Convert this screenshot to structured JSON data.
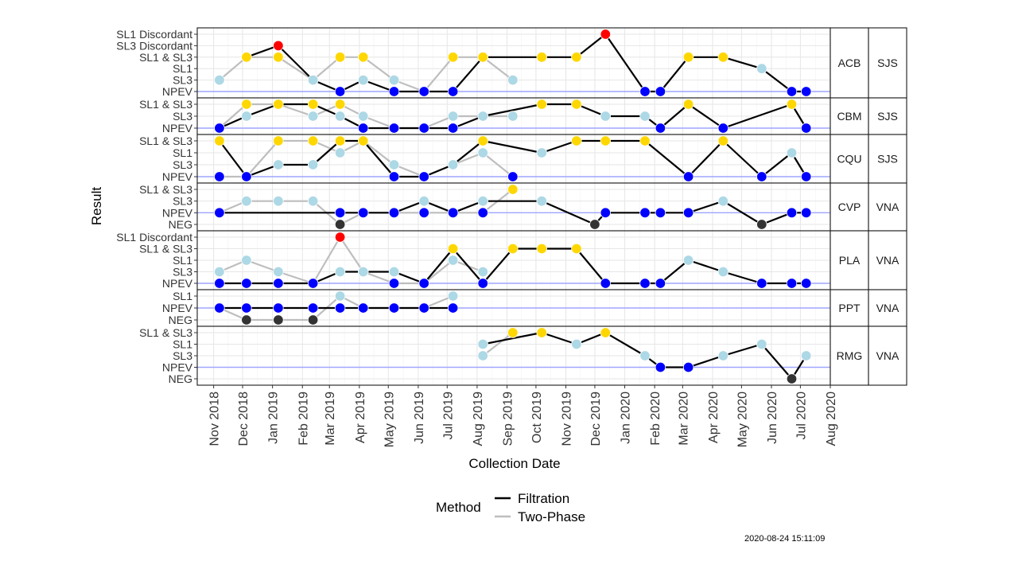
{
  "timestamp": "2020-08-24 15:11:09",
  "chart_data": {
    "type": "line",
    "xlabel": "Collection Date",
    "ylabel": "Result",
    "x_ticks": [
      "Nov 2018",
      "Dec 2018",
      "Jan 2019",
      "Feb 2019",
      "Mar 2019",
      "Apr 2019",
      "May 2019",
      "Jun 2019",
      "Jul 2019",
      "Aug 2019",
      "Sep 2019",
      "Oct 2019",
      "Nov 2019",
      "Dec 2019",
      "Jan 2020",
      "Feb 2020",
      "Mar 2020",
      "Apr 2020",
      "May 2020",
      "Jun 2020",
      "Jul 2020",
      "Aug 2020"
    ],
    "xlim": [
      "2018-10-15",
      "2020-08-01"
    ],
    "grid": true,
    "legend": {
      "title": "Method",
      "position": "bottom",
      "entries": [
        {
          "label": "Filtration",
          "color": "#000000"
        },
        {
          "label": "Two-Phase",
          "color": "#bebebe"
        }
      ]
    },
    "result_colors": {
      "SL1 Discordant": "#ff0000",
      "SL3 Discordant": "#ff0000",
      "SL1 & SL3": "#ffd700",
      "SL1": "#add8e6",
      "SL3": "#add8e6",
      "NPEV": "#0000ff",
      "NEG": "#333333"
    },
    "reference_level": "NPEV",
    "panels": [
      {
        "site": "ACB",
        "region": "SJS",
        "levels": [
          "NPEV",
          "SL3",
          "SL1",
          "SL1 & SL3",
          "SL3 Discordant",
          "SL1 Discordant"
        ],
        "series": [
          {
            "method": "Filtration",
            "points": [
              [
                "2018-12-05",
                "SL1 & SL3"
              ],
              [
                "2019-01-07",
                "SL3 Discordant"
              ],
              [
                "2019-02-12",
                "SL3"
              ],
              [
                "2019-03-12",
                "NPEV"
              ],
              [
                "2019-04-05",
                "SL3"
              ],
              [
                "2019-05-07",
                "NPEV"
              ],
              [
                "2019-06-07",
                "NPEV"
              ],
              [
                "2019-07-07",
                "NPEV"
              ],
              [
                "2019-08-07",
                "SL1 & SL3"
              ],
              [
                "2019-10-07",
                "SL1 & SL3"
              ],
              [
                "2019-11-12",
                "SL1 & SL3"
              ],
              [
                "2019-12-12",
                "SL1 Discordant"
              ],
              [
                "2020-01-22",
                "NPEV"
              ],
              [
                "2020-02-07",
                "NPEV"
              ],
              [
                "2020-03-07",
                "SL1 & SL3"
              ],
              [
                "2020-04-12",
                "SL1 & SL3"
              ],
              [
                "2020-05-22",
                "SL1"
              ],
              [
                "2020-06-22",
                "NPEV"
              ],
              [
                "2020-07-07",
                "NPEV"
              ]
            ]
          },
          {
            "method": "Two-Phase",
            "points": [
              [
                "2018-11-07",
                "SL3"
              ],
              [
                "2018-12-05",
                "SL1 & SL3"
              ],
              [
                "2019-01-07",
                "SL1 & SL3"
              ],
              [
                "2019-02-12",
                "SL3"
              ],
              [
                "2019-03-12",
                "SL1 & SL3"
              ],
              [
                "2019-04-05",
                "SL1 & SL3"
              ],
              [
                "2019-05-07",
                "SL3"
              ],
              [
                "2019-06-07",
                "NPEV"
              ],
              [
                "2019-07-07",
                "SL1 & SL3"
              ],
              [
                "2019-08-07",
                "SL1 & SL3"
              ],
              [
                "2019-09-07",
                "SL3"
              ]
            ]
          }
        ]
      },
      {
        "site": "CBM",
        "region": "SJS",
        "levels": [
          "NPEV",
          "SL3",
          "SL1 & SL3"
        ],
        "series": [
          {
            "method": "Filtration",
            "points": [
              [
                "2018-11-07",
                "NPEV"
              ],
              [
                "2018-12-05",
                "SL3"
              ],
              [
                "2019-01-07",
                "SL1 & SL3"
              ],
              [
                "2019-02-12",
                "SL1 & SL3"
              ],
              [
                "2019-03-12",
                "SL3"
              ],
              [
                "2019-04-05",
                "NPEV"
              ],
              [
                "2019-05-07",
                "NPEV"
              ],
              [
                "2019-06-07",
                "NPEV"
              ],
              [
                "2019-07-07",
                "NPEV"
              ],
              [
                "2019-08-07",
                "SL3"
              ],
              [
                "2019-10-07",
                "SL1 & SL3"
              ],
              [
                "2019-11-12",
                "SL1 & SL3"
              ],
              [
                "2019-12-12",
                "SL3"
              ],
              [
                "2020-01-22",
                "SL3"
              ],
              [
                "2020-02-07",
                "NPEV"
              ],
              [
                "2020-03-07",
                "SL1 & SL3"
              ],
              [
                "2020-04-12",
                "NPEV"
              ],
              [
                "2020-06-22",
                "SL1 & SL3"
              ],
              [
                "2020-07-07",
                "NPEV"
              ]
            ]
          },
          {
            "method": "Two-Phase",
            "points": [
              [
                "2018-11-07",
                "NPEV"
              ],
              [
                "2018-12-05",
                "SL1 & SL3"
              ],
              [
                "2019-01-07",
                "SL1 & SL3"
              ],
              [
                "2019-02-12",
                "SL3"
              ],
              [
                "2019-03-12",
                "SL1 & SL3"
              ],
              [
                "2019-04-05",
                "SL3"
              ],
              [
                "2019-05-07",
                "NPEV"
              ],
              [
                "2019-06-07",
                "NPEV"
              ],
              [
                "2019-07-07",
                "SL3"
              ],
              [
                "2019-08-07",
                "SL3"
              ],
              [
                "2019-09-07",
                "SL3"
              ]
            ]
          }
        ]
      },
      {
        "site": "CQU",
        "region": "SJS",
        "levels": [
          "NPEV",
          "SL3",
          "SL1",
          "SL1 & SL3"
        ],
        "series": [
          {
            "method": "Filtration",
            "points": [
              [
                "2018-11-07",
                "SL1 & SL3"
              ],
              [
                "2018-12-05",
                "NPEV"
              ],
              [
                "2019-01-07",
                "SL3"
              ],
              [
                "2019-02-12",
                "SL3"
              ],
              [
                "2019-03-12",
                "SL1 & SL3"
              ],
              [
                "2019-04-05",
                "SL1 & SL3"
              ],
              [
                "2019-05-07",
                "NPEV"
              ],
              [
                "2019-06-07",
                "NPEV"
              ],
              [
                "2019-07-07",
                "SL3"
              ],
              [
                "2019-08-07",
                "SL1 & SL3"
              ],
              [
                "2019-10-07",
                "SL1"
              ],
              [
                "2019-11-12",
                "SL1 & SL3"
              ],
              [
                "2019-12-12",
                "SL1 & SL3"
              ],
              [
                "2020-01-22",
                "SL1 & SL3"
              ],
              [
                "2020-03-07",
                "NPEV"
              ],
              [
                "2020-04-12",
                "SL1 & SL3"
              ],
              [
                "2020-05-22",
                "NPEV"
              ],
              [
                "2020-06-22",
                "SL1"
              ],
              [
                "2020-07-07",
                "NPEV"
              ]
            ]
          },
          {
            "method": "Two-Phase",
            "points": [
              [
                "2018-11-07",
                "NPEV"
              ],
              [
                "2018-12-05",
                "NPEV"
              ],
              [
                "2019-01-07",
                "SL1 & SL3"
              ],
              [
                "2019-02-12",
                "SL1 & SL3"
              ],
              [
                "2019-03-12",
                "SL1"
              ],
              [
                "2019-04-05",
                "SL1 & SL3"
              ],
              [
                "2019-05-07",
                "SL3"
              ],
              [
                "2019-06-07",
                "NPEV"
              ],
              [
                "2019-07-07",
                "SL3"
              ],
              [
                "2019-08-07",
                "SL1"
              ],
              [
                "2019-09-07",
                "NPEV"
              ]
            ]
          }
        ]
      },
      {
        "site": "CVP",
        "region": "VNA",
        "levels": [
          "NEG",
          "NPEV",
          "SL3",
          "SL1 & SL3"
        ],
        "series": [
          {
            "method": "Filtration",
            "points": [
              [
                "2018-11-07",
                "NPEV"
              ],
              [
                "2019-03-12",
                "NPEV"
              ],
              [
                "2019-04-05",
                "NPEV"
              ],
              [
                "2019-05-07",
                "NPEV"
              ],
              [
                "2019-06-07",
                "SL3"
              ],
              [
                "2019-07-07",
                "NPEV"
              ],
              [
                "2019-08-07",
                "SL3"
              ],
              [
                "2019-10-07",
                "SL3"
              ],
              [
                "2019-12-01",
                "NEG"
              ],
              [
                "2019-12-12",
                "NPEV"
              ],
              [
                "2020-01-22",
                "NPEV"
              ],
              [
                "2020-02-07",
                "NPEV"
              ],
              [
                "2020-03-07",
                "NPEV"
              ],
              [
                "2020-04-12",
                "SL3"
              ],
              [
                "2020-05-22",
                "NEG"
              ],
              [
                "2020-06-22",
                "NPEV"
              ],
              [
                "2020-07-07",
                "NPEV"
              ]
            ]
          },
          {
            "method": "Two-Phase",
            "points": [
              [
                "2018-11-07",
                "NPEV"
              ],
              [
                "2018-12-05",
                "SL3"
              ],
              [
                "2019-01-07",
                "SL3"
              ],
              [
                "2019-02-12",
                "SL3"
              ],
              [
                "2019-03-12",
                "NEG"
              ],
              [
                "2019-04-05",
                "NPEV"
              ],
              [
                "2019-05-07",
                "NPEV"
              ],
              [
                "2019-06-07",
                "NPEV"
              ],
              [
                "2019-07-07",
                "NPEV"
              ],
              [
                "2019-08-07",
                "NPEV"
              ],
              [
                "2019-09-07",
                "SL1 & SL3"
              ]
            ]
          }
        ]
      },
      {
        "site": "PLA",
        "region": "VNA",
        "levels": [
          "NPEV",
          "SL3",
          "SL1",
          "SL1 & SL3",
          "SL1 Discordant"
        ],
        "series": [
          {
            "method": "Filtration",
            "points": [
              [
                "2018-11-07",
                "NPEV"
              ],
              [
                "2018-12-05",
                "NPEV"
              ],
              [
                "2019-01-07",
                "NPEV"
              ],
              [
                "2019-02-12",
                "NPEV"
              ],
              [
                "2019-03-12",
                "SL3"
              ],
              [
                "2019-04-05",
                "SL3"
              ],
              [
                "2019-05-07",
                "SL3"
              ],
              [
                "2019-06-07",
                "NPEV"
              ],
              [
                "2019-07-07",
                "SL1 & SL3"
              ],
              [
                "2019-08-07",
                "NPEV"
              ],
              [
                "2019-09-07",
                "SL1 & SL3"
              ],
              [
                "2019-10-07",
                "SL1 & SL3"
              ],
              [
                "2019-11-12",
                "SL1 & SL3"
              ],
              [
                "2019-12-12",
                "NPEV"
              ],
              [
                "2020-01-22",
                "NPEV"
              ],
              [
                "2020-02-07",
                "NPEV"
              ],
              [
                "2020-03-07",
                "SL1"
              ],
              [
                "2020-04-12",
                "SL3"
              ],
              [
                "2020-05-22",
                "NPEV"
              ],
              [
                "2020-06-22",
                "NPEV"
              ],
              [
                "2020-07-07",
                "NPEV"
              ]
            ]
          },
          {
            "method": "Two-Phase",
            "points": [
              [
                "2018-11-07",
                "SL3"
              ],
              [
                "2018-12-05",
                "SL1"
              ],
              [
                "2019-01-07",
                "SL3"
              ],
              [
                "2019-02-12",
                "NPEV"
              ],
              [
                "2019-03-12",
                "SL1 Discordant"
              ],
              [
                "2019-04-05",
                "SL3"
              ],
              [
                "2019-05-07",
                "NPEV"
              ],
              [
                "2019-06-07",
                "NPEV"
              ],
              [
                "2019-07-07",
                "SL1"
              ],
              [
                "2019-08-07",
                "SL3"
              ]
            ]
          }
        ]
      },
      {
        "site": "PPT",
        "region": "VNA",
        "levels": [
          "NEG",
          "NPEV",
          "SL1"
        ],
        "series": [
          {
            "method": "Filtration",
            "points": [
              [
                "2018-11-07",
                "NPEV"
              ],
              [
                "2018-12-05",
                "NPEV"
              ],
              [
                "2019-01-07",
                "NPEV"
              ],
              [
                "2019-02-12",
                "NPEV"
              ],
              [
                "2019-03-12",
                "NPEV"
              ],
              [
                "2019-04-05",
                "NPEV"
              ],
              [
                "2019-05-07",
                "NPEV"
              ],
              [
                "2019-06-07",
                "NPEV"
              ],
              [
                "2019-07-07",
                "NPEV"
              ]
            ]
          },
          {
            "method": "Two-Phase",
            "points": [
              [
                "2018-11-07",
                "NPEV"
              ],
              [
                "2018-12-05",
                "NEG"
              ],
              [
                "2019-01-07",
                "NEG"
              ],
              [
                "2019-02-12",
                "NEG"
              ],
              [
                "2019-03-12",
                "SL1"
              ],
              [
                "2019-04-05",
                "NPEV"
              ],
              [
                "2019-05-07",
                "NPEV"
              ],
              [
                "2019-06-07",
                "NPEV"
              ],
              [
                "2019-07-07",
                "SL1"
              ]
            ]
          }
        ]
      },
      {
        "site": "RMG",
        "region": "VNA",
        "levels": [
          "NEG",
          "NPEV",
          "SL3",
          "SL1",
          "SL1 & SL3"
        ],
        "series": [
          {
            "method": "Filtration",
            "points": [
              [
                "2019-08-07",
                "SL1"
              ],
              [
                "2019-10-07",
                "SL1 & SL3"
              ],
              [
                "2019-11-12",
                "SL1"
              ],
              [
                "2019-12-12",
                "SL1 & SL3"
              ],
              [
                "2020-01-22",
                "SL3"
              ],
              [
                "2020-02-07",
                "NPEV"
              ],
              [
                "2020-03-07",
                "NPEV"
              ],
              [
                "2020-04-12",
                "SL3"
              ],
              [
                "2020-05-22",
                "SL1"
              ],
              [
                "2020-06-22",
                "NEG"
              ],
              [
                "2020-07-07",
                "SL3"
              ]
            ]
          },
          {
            "method": "Two-Phase",
            "points": [
              [
                "2019-08-07",
                "SL3"
              ],
              [
                "2019-09-07",
                "SL1 & SL3"
              ]
            ]
          }
        ]
      }
    ]
  }
}
